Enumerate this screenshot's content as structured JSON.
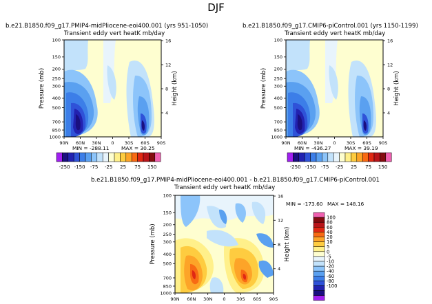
{
  "figure": {
    "season": "DJF"
  },
  "chart_data": [
    {
      "type": "heatmap",
      "run_title": "b.e21.B1850.f09_g17.PMIP4-midPliocene-eoi400.001 (yrs 951-1050)",
      "subtitle": "Transient eddy vert heatK mb/day",
      "ylabel": "Pressure (mb)",
      "y2label": "Height (km)",
      "x_ticks": [
        "90N",
        "60N",
        "30N",
        "0",
        "30S",
        "60S",
        "90S"
      ],
      "y_ticks": [
        "100",
        "150",
        "200",
        "250",
        "300",
        "400",
        "500",
        "700",
        "850",
        "1000"
      ],
      "y2_ticks": [
        "16",
        "12",
        "8",
        "4"
      ],
      "min_label": "MIN = -288.11",
      "max_label": "MAX = 30.25",
      "colorbar_ticks": [
        "-250",
        "-150",
        "-75",
        "-25",
        "25",
        "75",
        "150"
      ],
      "colors": [
        "#a020f0",
        "#1a0f80",
        "#2222b0",
        "#2f52d8",
        "#3c7ee8",
        "#5aa0f0",
        "#8cc4fa",
        "#c2e2fb",
        "#e8f4fc",
        "#fefed0",
        "#fff08a",
        "#fecc40",
        "#fda428",
        "#f86a14",
        "#e02814",
        "#b8141a",
        "#840b0f",
        "#f060b0"
      ]
    },
    {
      "type": "heatmap",
      "run_title": "b.e21.B1850.f09_g17.CMIP6-piControl.001 (yrs 1150-1199)",
      "subtitle": "Transient eddy vert heatK mb/day",
      "ylabel": "Pressure (mb)",
      "y2label": "Height (km)",
      "x_ticks": [
        "90N",
        "60N",
        "30N",
        "0",
        "30S",
        "60S",
        "90S"
      ],
      "y_ticks": [
        "100",
        "150",
        "200",
        "250",
        "300",
        "400",
        "500",
        "700",
        "850",
        "1000"
      ],
      "y2_ticks": [
        "16",
        "12",
        "8",
        "4"
      ],
      "min_label": "MIN = -436.27",
      "max_label": "MAX = 39.19",
      "colorbar_ticks": [
        "-250",
        "-150",
        "-75",
        "-25",
        "25",
        "75",
        "150"
      ],
      "colors": [
        "#a020f0",
        "#1a0f80",
        "#2222b0",
        "#2f52d8",
        "#3c7ee8",
        "#5aa0f0",
        "#8cc4fa",
        "#c2e2fb",
        "#e8f4fc",
        "#fefed0",
        "#fff08a",
        "#fecc40",
        "#fda428",
        "#f86a14",
        "#e02814",
        "#b8141a",
        "#840b0f",
        "#f060b0"
      ]
    },
    {
      "type": "heatmap",
      "run_title": "b.e21.B1850.f09_g17.PMIP4-midPliocene-eoi400.001 - b.e21.B1850.f09_g17.CMIP6-piControl.001",
      "subtitle": "Transient eddy vert heatK mb/day",
      "ylabel": "Pressure (mb)",
      "y2label": "Height (km)",
      "x_ticks": [
        "90N",
        "60N",
        "30N",
        "0",
        "30S",
        "60S",
        "90S"
      ],
      "y_ticks": [
        "100",
        "150",
        "200",
        "250",
        "300",
        "400",
        "500",
        "700",
        "850",
        "1000"
      ],
      "y2_ticks": [
        "16",
        "12",
        "8",
        "4"
      ],
      "min_label": "MIN = -173.60",
      "max_label": "MAX = 148.16",
      "colorbar_ticks": [
        "100",
        "80",
        "60",
        "40",
        "20",
        "10",
        "5",
        "0",
        "-5",
        "-10",
        "-20",
        "-40",
        "-60",
        "-80",
        "-100"
      ],
      "colors": [
        "#f060b0",
        "#840b0f",
        "#b8141a",
        "#e02814",
        "#f86a14",
        "#fda428",
        "#fecc40",
        "#fff08a",
        "#fefed0",
        "#e8f4fc",
        "#c2e2fb",
        "#8cc4fa",
        "#5aa0f0",
        "#3c7ee8",
        "#2f52d8",
        "#2222b0",
        "#1a0f80",
        "#a020f0"
      ]
    }
  ]
}
